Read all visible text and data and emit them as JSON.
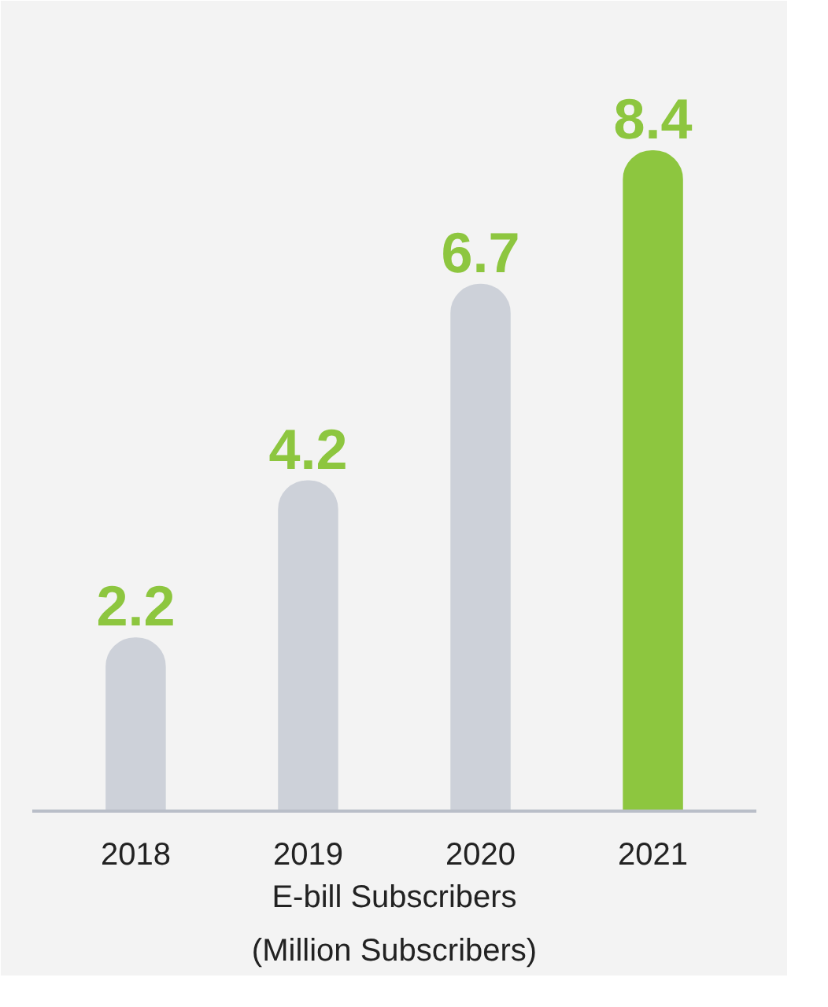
{
  "chart_data": {
    "type": "bar",
    "xlabel": "E-bill Subscribers\n(Million Subscribers)",
    "categories": [
      "2018",
      "2019",
      "2020",
      "2021"
    ],
    "values": [
      2.2,
      4.2,
      6.7,
      8.4
    ],
    "colors": [
      "#cdd1d9",
      "#cdd1d9",
      "#cdd1d9",
      "#8dc63f"
    ],
    "data_labels": true
  }
}
